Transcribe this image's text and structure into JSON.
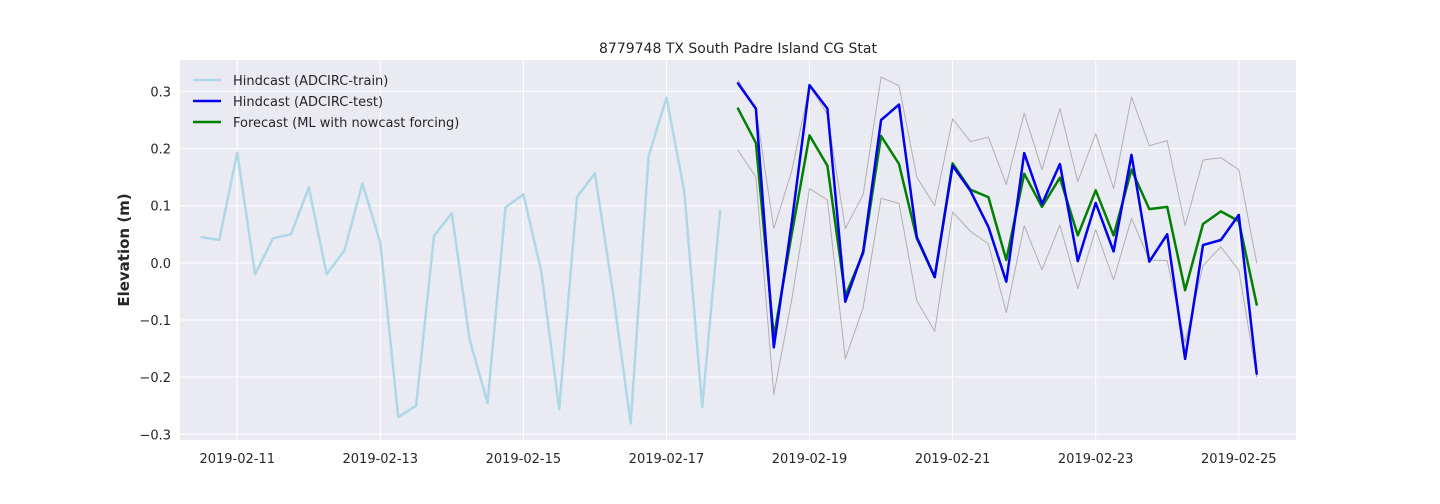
{
  "chart_data": {
    "type": "line",
    "title": "8779748 TX South Padre Island CG Stat",
    "xlabel": "",
    "ylabel": "Elevation (m)",
    "xlim": [
      "2019-02-10 04:48",
      "2019-02-25 19:12"
    ],
    "ylim": [
      -0.31,
      0.355
    ],
    "yticks": [
      -0.3,
      -0.2,
      -0.1,
      0.0,
      0.1,
      0.2,
      0.3
    ],
    "ytick_labels": [
      "−0.3",
      "−0.2",
      "−0.1",
      "0.0",
      "0.1",
      "0.2",
      "0.3"
    ],
    "xticks": [
      "2019-02-11",
      "2019-02-13",
      "2019-02-15",
      "2019-02-17",
      "2019-02-19",
      "2019-02-21",
      "2019-02-23",
      "2019-02-25"
    ],
    "grid": true,
    "legend_position": "upper-left",
    "colors": {
      "plot_bg": "#eaeaf2",
      "grid": "#ffffff",
      "train": "#add8e6",
      "test": "#0000ee",
      "forecast": "#008000",
      "band": "#b0b0b0"
    },
    "series": [
      {
        "name": "Hindcast (ADCIRC-train)",
        "color": "#add8e6",
        "x": [
          "2019-02-10 12:00",
          "2019-02-10 18:00",
          "2019-02-11 00:00",
          "2019-02-11 06:00",
          "2019-02-11 12:00",
          "2019-02-11 18:00",
          "2019-02-12 00:00",
          "2019-02-12 06:00",
          "2019-02-12 12:00",
          "2019-02-12 18:00",
          "2019-02-13 00:00",
          "2019-02-13 06:00",
          "2019-02-13 12:00",
          "2019-02-13 18:00",
          "2019-02-14 00:00",
          "2019-02-14 06:00",
          "2019-02-14 12:00",
          "2019-02-14 18:00",
          "2019-02-15 00:00",
          "2019-02-15 06:00",
          "2019-02-15 12:00",
          "2019-02-15 18:00",
          "2019-02-16 00:00",
          "2019-02-16 06:00",
          "2019-02-16 12:00",
          "2019-02-16 18:00",
          "2019-02-17 00:00",
          "2019-02-17 06:00",
          "2019-02-17 12:00",
          "2019-02-17 18:00"
        ],
        "values": [
          0.045,
          0.04,
          0.193,
          -0.02,
          0.043,
          0.05,
          0.132,
          -0.02,
          0.022,
          0.139,
          0.035,
          -0.27,
          -0.25,
          0.047,
          0.087,
          -0.135,
          -0.245,
          0.097,
          0.12,
          -0.015,
          -0.256,
          0.115,
          0.157,
          -0.05,
          -0.281,
          0.187,
          0.289,
          0.125,
          -0.252,
          0.091
        ]
      },
      {
        "name": "Hindcast (ADCIRC-test)",
        "color": "#0000ee",
        "x": [
          "2019-02-18 00:00",
          "2019-02-18 06:00",
          "2019-02-18 12:00",
          "2019-02-18 18:00",
          "2019-02-19 00:00",
          "2019-02-19 06:00",
          "2019-02-19 12:00",
          "2019-02-19 18:00",
          "2019-02-20 00:00",
          "2019-02-20 06:00",
          "2019-02-20 12:00",
          "2019-02-20 18:00",
          "2019-02-21 00:00",
          "2019-02-21 06:00",
          "2019-02-21 12:00",
          "2019-02-21 18:00",
          "2019-02-22 00:00",
          "2019-02-22 06:00",
          "2019-02-22 12:00",
          "2019-02-22 18:00",
          "2019-02-23 00:00",
          "2019-02-23 06:00",
          "2019-02-23 12:00",
          "2019-02-23 18:00",
          "2019-02-24 00:00",
          "2019-02-24 06:00",
          "2019-02-24 12:00",
          "2019-02-24 18:00",
          "2019-02-25 00:00",
          "2019-02-25 06:00"
        ],
        "values": [
          0.314,
          0.27,
          -0.148,
          0.07,
          0.311,
          0.27,
          -0.068,
          0.02,
          0.25,
          0.277,
          0.045,
          -0.025,
          0.17,
          0.126,
          0.063,
          -0.033,
          0.192,
          0.103,
          0.173,
          0.003,
          0.105,
          0.02,
          0.189,
          0.002,
          0.05,
          -0.168,
          0.031,
          0.04,
          0.084,
          -0.194
        ]
      },
      {
        "name": "Forecast (ML with nowcast forcing)",
        "color": "#008000",
        "x": [
          "2019-02-18 00:00",
          "2019-02-18 06:00",
          "2019-02-18 12:00",
          "2019-02-18 18:00",
          "2019-02-19 00:00",
          "2019-02-19 06:00",
          "2019-02-19 12:00",
          "2019-02-19 18:00",
          "2019-02-20 00:00",
          "2019-02-20 06:00",
          "2019-02-20 12:00",
          "2019-02-20 18:00",
          "2019-02-21 00:00",
          "2019-02-21 06:00",
          "2019-02-21 12:00",
          "2019-02-21 18:00",
          "2019-02-22 00:00",
          "2019-02-22 06:00",
          "2019-02-22 12:00",
          "2019-02-22 18:00",
          "2019-02-23 00:00",
          "2019-02-23 06:00",
          "2019-02-23 12:00",
          "2019-02-23 18:00",
          "2019-02-24 00:00",
          "2019-02-24 06:00",
          "2019-02-24 12:00",
          "2019-02-24 18:00",
          "2019-02-25 00:00",
          "2019-02-25 06:00"
        ],
        "values": [
          0.27,
          0.21,
          -0.13,
          0.05,
          0.223,
          0.17,
          -0.058,
          0.017,
          0.222,
          0.173,
          0.043,
          -0.025,
          0.174,
          0.128,
          0.115,
          0.005,
          0.156,
          0.098,
          0.149,
          0.048,
          0.127,
          0.048,
          0.163,
          0.094,
          0.098,
          -0.048,
          0.068,
          0.09,
          0.073,
          -0.073
        ]
      },
      {
        "name": "",
        "color": "#b0b0b0",
        "x": [
          "2019-02-18 00:00",
          "2019-02-18 06:00",
          "2019-02-18 12:00",
          "2019-02-18 18:00",
          "2019-02-19 00:00",
          "2019-02-19 06:00",
          "2019-02-19 12:00",
          "2019-02-19 18:00",
          "2019-02-20 00:00",
          "2019-02-20 06:00",
          "2019-02-20 12:00",
          "2019-02-20 18:00",
          "2019-02-21 00:00",
          "2019-02-21 06:00",
          "2019-02-21 12:00",
          "2019-02-21 18:00",
          "2019-02-22 00:00",
          "2019-02-22 06:00",
          "2019-02-22 12:00",
          "2019-02-22 18:00",
          "2019-02-23 00:00",
          "2019-02-23 06:00",
          "2019-02-23 12:00",
          "2019-02-23 18:00",
          "2019-02-24 00:00",
          "2019-02-24 06:00",
          "2019-02-24 12:00",
          "2019-02-24 18:00",
          "2019-02-25 00:00",
          "2019-02-25 06:00"
        ],
        "values": [
          0.32,
          0.27,
          0.06,
          0.16,
          0.31,
          0.26,
          0.06,
          0.12,
          0.325,
          0.31,
          0.15,
          0.1,
          0.252,
          0.212,
          0.22,
          0.137,
          0.262,
          0.163,
          0.27,
          0.142,
          0.226,
          0.13,
          0.29,
          0.205,
          0.214,
          0.065,
          0.18,
          0.184,
          0.163,
          0.0
        ]
      },
      {
        "name": "",
        "color": "#b0b0b0",
        "x": [
          "2019-02-18 00:00",
          "2019-02-18 06:00",
          "2019-02-18 12:00",
          "2019-02-18 18:00",
          "2019-02-19 00:00",
          "2019-02-19 06:00",
          "2019-02-19 12:00",
          "2019-02-19 18:00",
          "2019-02-20 00:00",
          "2019-02-20 06:00",
          "2019-02-20 12:00",
          "2019-02-20 18:00",
          "2019-02-21 00:00",
          "2019-02-21 06:00",
          "2019-02-21 12:00",
          "2019-02-21 18:00",
          "2019-02-22 00:00",
          "2019-02-22 06:00",
          "2019-02-22 12:00",
          "2019-02-22 18:00",
          "2019-02-23 00:00",
          "2019-02-23 06:00",
          "2019-02-23 12:00",
          "2019-02-23 18:00",
          "2019-02-24 00:00",
          "2019-02-24 06:00",
          "2019-02-24 12:00",
          "2019-02-24 18:00",
          "2019-02-25 00:00",
          "2019-02-25 06:00"
        ],
        "values": [
          0.197,
          0.15,
          -0.23,
          -0.065,
          0.13,
          0.11,
          -0.168,
          -0.078,
          0.113,
          0.104,
          -0.066,
          -0.12,
          0.089,
          0.055,
          0.033,
          -0.087,
          0.065,
          -0.012,
          0.066,
          -0.045,
          0.058,
          -0.03,
          0.078,
          0.005,
          0.004,
          -0.14,
          -0.005,
          0.028,
          -0.013,
          -0.2
        ]
      }
    ],
    "legend": [
      {
        "label": "Hindcast (ADCIRC-train)",
        "color": "#add8e6"
      },
      {
        "label": "Hindcast (ADCIRC-test)",
        "color": "#0000ee"
      },
      {
        "label": "Forecast (ML with nowcast forcing)",
        "color": "#008000"
      }
    ]
  }
}
